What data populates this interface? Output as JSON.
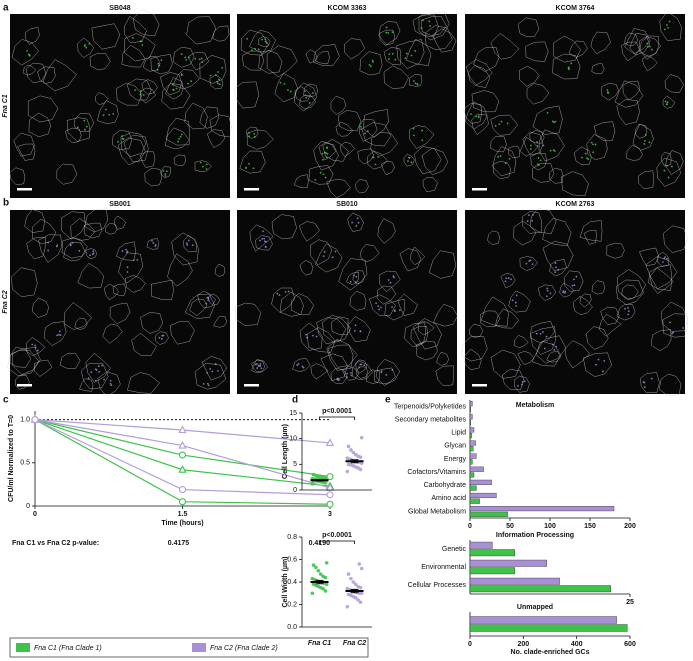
{
  "panel_labels": [
    "a",
    "b",
    "c",
    "d",
    "e"
  ],
  "image_rows": [
    {
      "row_label": "Fna C1",
      "images": [
        "SB048",
        "KCOM 3363",
        "KCOM 3764"
      ],
      "color": "#46d24e"
    },
    {
      "row_label": "Fna C2",
      "images": [
        "SB001",
        "SB010",
        "KCOM 2763"
      ],
      "color": "#a58fe0"
    }
  ],
  "legend": [
    {
      "name": "Fna C1 (Fna Clade 1)",
      "color": "#3fc24a"
    },
    {
      "name": "Fna C2 (Fna Clade 2)",
      "color": "#a98fd6"
    }
  ],
  "chart_data": [
    {
      "type": "line",
      "ylabel": "CFU/ml Normalized to T=0",
      "xlabel": "Time (hours)",
      "x": [
        0,
        1.5,
        3
      ],
      "xlim": [
        0,
        3
      ],
      "xticks": [
        0,
        1.5,
        3
      ],
      "ylim": [
        0,
        1.1
      ],
      "yticks": [
        0,
        0.5,
        {
          "value": 1,
          "label": "1.0"
        }
      ],
      "reference_line": 1,
      "annotation": "Fna C1 vs Fna C2 p-value:",
      "p_value_labels": [
        "0.4175",
        "0.4190"
      ],
      "series": [
        {
          "color": "#3fc24a",
          "marker": "circle",
          "values": [
            1,
            0.59,
            0.34
          ]
        },
        {
          "color": "#3fc24a",
          "marker": "triangle",
          "values": [
            1,
            0.42,
            0.23
          ]
        },
        {
          "color": "#3fc24a",
          "marker": "circle",
          "values": [
            1,
            0.05,
            0.02
          ]
        },
        {
          "color": "#b39ddb",
          "marker": "triangle",
          "values": [
            1,
            0.88,
            0.73
          ]
        },
        {
          "color": "#b39ddb",
          "marker": "triangle",
          "values": [
            1,
            0.7,
            0.21
          ]
        },
        {
          "color": "#b39ddb",
          "marker": "circle",
          "values": [
            1,
            0.19,
            0.13
          ]
        }
      ]
    },
    {
      "type": "strip",
      "ylabel": "Cell Length (µm)",
      "ylim": [
        0,
        15
      ],
      "yticks": [
        0,
        5,
        10,
        15
      ],
      "annotation": "p<0.0001",
      "means": [
        1.9,
        5.6
      ],
      "errors": [
        0.15,
        0.3
      ],
      "series": [
        {
          "color": "#3fc24a",
          "values": [
            1.2,
            1.4,
            1.5,
            1.6,
            1.7,
            1.8,
            1.8,
            1.9,
            1.9,
            2.0,
            2.0,
            2.1,
            2.1,
            2.2,
            2.3,
            2.4,
            2.5,
            2.6,
            2.8,
            3.0
          ]
        },
        {
          "color": "#b39ddb",
          "values": [
            3.6,
            4.0,
            4.3,
            4.5,
            4.7,
            4.9,
            5.0,
            5.2,
            5.4,
            5.5,
            5.6,
            5.8,
            6.0,
            6.2,
            6.4,
            6.6,
            6.9,
            7.3,
            7.8,
            8.5,
            10.2
          ]
        }
      ]
    },
    {
      "type": "strip",
      "ylabel": "Cell Width (µm)",
      "ylim": [
        0,
        0.8
      ],
      "yticks": [
        {
          "value": 0,
          "label": "0.0"
        },
        0.2,
        0.4,
        0.6,
        0.8
      ],
      "annotation": "p<0.0001",
      "categories": [
        "Fna C1",
        "Fna C2"
      ],
      "means": [
        0.4,
        0.32
      ],
      "errors": [
        0.015,
        0.015
      ],
      "series": [
        {
          "color": "#3fc24a",
          "values": [
            0.3,
            0.32,
            0.34,
            0.35,
            0.36,
            0.37,
            0.38,
            0.38,
            0.39,
            0.4,
            0.4,
            0.41,
            0.42,
            0.43,
            0.44,
            0.45,
            0.47,
            0.5,
            0.53,
            0.55,
            0.57
          ]
        },
        {
          "color": "#b39ddb",
          "values": [
            0.18,
            0.22,
            0.24,
            0.26,
            0.27,
            0.28,
            0.29,
            0.3,
            0.3,
            0.31,
            0.32,
            0.32,
            0.33,
            0.34,
            0.35,
            0.36,
            0.38,
            0.4,
            0.43,
            0.47,
            0.52,
            0.56
          ]
        }
      ]
    },
    {
      "type": "hbar",
      "title": "Metabolism",
      "categories": [
        "Terpenoids/Polyketides",
        "Secondary metabolites",
        "Lipid",
        "Glycan",
        "Energy",
        "Cofactors/Vitamins",
        "Carbohydrate",
        "Amino acid",
        "Global Metabolism"
      ],
      "xlim": [
        0,
        200
      ],
      "xticks": [
        0,
        50,
        100,
        150,
        200
      ],
      "series": [
        {
          "color": "#a98fd6",
          "values": [
            3,
            3,
            5,
            7,
            8,
            17,
            27,
            33,
            180
          ]
        },
        {
          "color": "#3fc24a",
          "values": [
            1,
            1,
            2,
            4,
            3,
            5,
            8,
            12,
            47
          ]
        }
      ]
    },
    {
      "type": "hbar",
      "title": "Information Processing",
      "categories": [
        "Genetic",
        "Environmental",
        "Cellular Processes"
      ],
      "xlim": [
        0,
        25
      ],
      "xticks": [
        25
      ],
      "series": [
        {
          "color": "#a98fd6",
          "values": [
            3.5,
            12,
            14
          ]
        },
        {
          "color": "#3fc24a",
          "values": [
            7,
            7,
            22
          ]
        }
      ]
    },
    {
      "type": "hbar",
      "title": "Unmapped",
      "xlabel": "No. clade-enriched GCs",
      "categories": [
        null
      ],
      "xlim": [
        0,
        600
      ],
      "xticks": [
        0,
        200,
        400,
        600
      ],
      "series": [
        {
          "color": "#a98fd6",
          "values": [
            550
          ]
        },
        {
          "color": "#3fc24a",
          "values": [
            590
          ]
        }
      ]
    }
  ]
}
